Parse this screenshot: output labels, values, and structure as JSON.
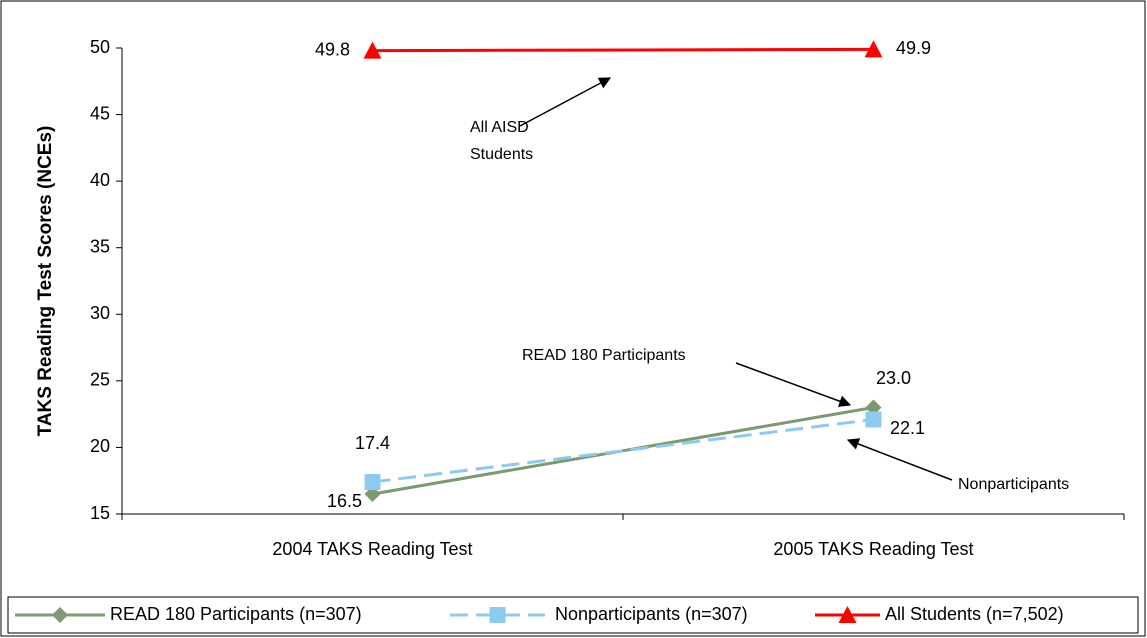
{
  "chart_data": {
    "type": "line",
    "y_label": "TAKS Reading Test Scores (NCEs)",
    "categories": [
      "2004 TAKS Reading Test",
      "2005 TAKS Reading Test"
    ],
    "series": [
      {
        "name": "READ 180 Participants (n=307)",
        "color": "#7b9a6d",
        "marker": "diamond",
        "dash": false,
        "values": [
          16.5,
          23.0
        ],
        "value_labels": [
          "16.5",
          "23.0"
        ]
      },
      {
        "name": "Nonparticipants (n=307)",
        "color": "#8ccbef",
        "marker": "square",
        "dash": true,
        "values": [
          17.4,
          22.1
        ]
      },
      {
        "name": "All Students (n=7,502)",
        "color": "#ff0000",
        "marker": "triangle",
        "dash": false,
        "values": [
          49.8,
          49.9
        ]
      }
    ],
    "ylim": [
      15,
      50
    ],
    "yticks": [
      15,
      20,
      25,
      30,
      35,
      40,
      45,
      50
    ],
    "grid": false,
    "legend": "bottom",
    "annotations": [
      {
        "lines": [
          "All AISD",
          "Students"
        ]
      },
      {
        "lines": [
          "READ 180 Participants"
        ]
      },
      {
        "lines": [
          "Nonparticipants"
        ]
      }
    ]
  }
}
